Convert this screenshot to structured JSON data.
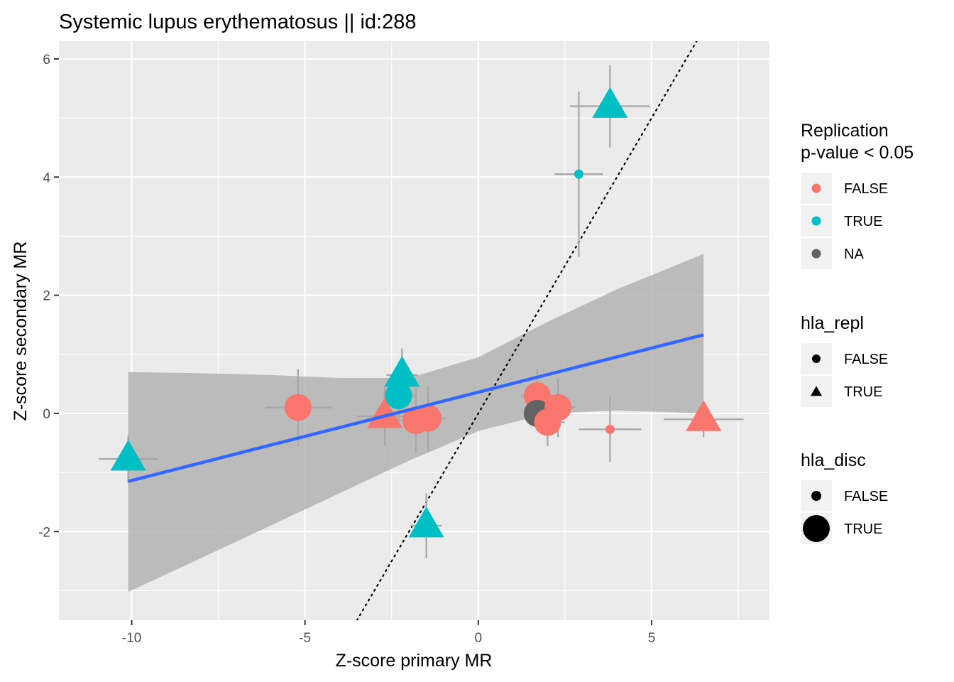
{
  "chart_data": {
    "type": "scatter",
    "title": "Systemic lupus erythematosus || id:288",
    "xlabel": "Z-score primary MR",
    "ylabel": "Z-score secondary MR",
    "xlim": [
      -12.1,
      8.4
    ],
    "ylim": [
      -3.5,
      6.3
    ],
    "x_ticks": [
      -10,
      -5,
      0,
      5
    ],
    "y_ticks": [
      -2,
      0,
      2,
      4,
      6
    ],
    "x_tick_labels": [
      "-10",
      "-5",
      "0",
      "5"
    ],
    "y_tick_labels": [
      "-2",
      "0",
      "2",
      "4",
      "6"
    ],
    "grid": true,
    "colors": {
      "FALSE": "#F8766D",
      "TRUE": "#00BFC4",
      "NA": "#636363",
      "fit_line": "#3366FF",
      "ribbon": "#b3b3b3",
      "errorbar": "#a6a6a6"
    },
    "reference_line": {
      "style": "dotted",
      "x": [
        -3.5,
        6.3
      ],
      "y": [
        -3.5,
        6.3
      ]
    },
    "fit": {
      "x": [
        -10.1,
        6.5
      ],
      "y": [
        -1.15,
        1.33
      ],
      "ribbon": [
        {
          "x": -10.1,
          "lo": -3.02,
          "hi": 0.7
        },
        {
          "x": -8,
          "lo": -2.45,
          "hi": 0.68
        },
        {
          "x": -6,
          "lo": -1.9,
          "hi": 0.65
        },
        {
          "x": -4,
          "lo": -1.35,
          "hi": 0.6
        },
        {
          "x": -2,
          "lo": -0.8,
          "hi": 0.6
        },
        {
          "x": 0,
          "lo": -0.3,
          "hi": 0.95
        },
        {
          "x": 2,
          "lo": 0.0,
          "hi": 1.55
        },
        {
          "x": 4,
          "lo": 0.05,
          "hi": 2.1
        },
        {
          "x": 6.5,
          "lo": 0.0,
          "hi": 2.7
        }
      ]
    },
    "points": [
      {
        "x": -10.1,
        "y": -0.77,
        "xerr": 0.85,
        "yerr": 0.4,
        "replication": "TRUE",
        "hla_repl": "TRUE",
        "hla_disc": "TRUE"
      },
      {
        "x": -5.2,
        "y": 0.1,
        "xerr": 0.95,
        "yerr": 0.65,
        "replication": "FALSE",
        "hla_repl": "FALSE",
        "hla_disc": "TRUE"
      },
      {
        "x": -2.7,
        "y": -0.05,
        "xerr": 0.8,
        "yerr": 0.5,
        "replication": "FALSE",
        "hla_repl": "TRUE",
        "hla_disc": "TRUE"
      },
      {
        "x": -2.2,
        "y": 0.65,
        "xerr": 0.45,
        "yerr": 0.45,
        "replication": "TRUE",
        "hla_repl": "TRUE",
        "hla_disc": "TRUE"
      },
      {
        "x": -2.3,
        "y": 0.3,
        "xerr": 0.45,
        "yerr": 0.45,
        "replication": "TRUE",
        "hla_repl": "FALSE",
        "hla_disc": "TRUE"
      },
      {
        "x": -1.8,
        "y": -0.12,
        "xerr": 0.5,
        "yerr": 0.55,
        "replication": "FALSE",
        "hla_repl": "FALSE",
        "hla_disc": "TRUE"
      },
      {
        "x": -1.45,
        "y": -0.08,
        "xerr": 0.5,
        "yerr": 0.55,
        "replication": "FALSE",
        "hla_repl": "FALSE",
        "hla_disc": "TRUE"
      },
      {
        "x": -1.5,
        "y": -1.9,
        "xerr": 0.45,
        "yerr": 0.55,
        "replication": "TRUE",
        "hla_repl": "TRUE",
        "hla_disc": "TRUE"
      },
      {
        "x": 1.7,
        "y": 0.3,
        "xerr": 0.45,
        "yerr": 0.45,
        "replication": "FALSE",
        "hla_repl": "FALSE",
        "hla_disc": "TRUE"
      },
      {
        "x": 1.7,
        "y": 0.0,
        "xerr": 0.35,
        "yerr": 0.3,
        "replication": "NA",
        "hla_repl": "FALSE",
        "hla_disc": "TRUE"
      },
      {
        "x": 2.0,
        "y": -0.15,
        "xerr": 0.5,
        "yerr": 0.4,
        "replication": "FALSE",
        "hla_repl": "FALSE",
        "hla_disc": "TRUE"
      },
      {
        "x": 2.3,
        "y": 0.1,
        "xerr": 0.5,
        "yerr": 0.5,
        "replication": "FALSE",
        "hla_repl": "FALSE",
        "hla_disc": "TRUE"
      },
      {
        "x": 2.9,
        "y": 4.05,
        "xerr": 0.7,
        "yerr": 1.4,
        "replication": "TRUE",
        "hla_repl": "FALSE",
        "hla_disc": "FALSE"
      },
      {
        "x": 3.8,
        "y": 5.2,
        "xerr": 1.15,
        "yerr": 0.7,
        "replication": "TRUE",
        "hla_repl": "TRUE",
        "hla_disc": "TRUE"
      },
      {
        "x": 3.8,
        "y": -0.27,
        "xerr": 0.9,
        "yerr": 0.55,
        "replication": "FALSE",
        "hla_repl": "FALSE",
        "hla_disc": "FALSE"
      },
      {
        "x": 6.5,
        "y": -0.1,
        "xerr": 1.15,
        "yerr": 0.3,
        "replication": "FALSE",
        "hla_repl": "TRUE",
        "hla_disc": "TRUE"
      }
    ],
    "legends": [
      {
        "title_lines": [
          "Replication",
          "p-value < 0.05"
        ],
        "kind": "color",
        "entries": [
          {
            "label": "FALSE",
            "key": "FALSE"
          },
          {
            "label": "TRUE",
            "key": "TRUE"
          },
          {
            "label": "NA",
            "key": "NA"
          }
        ]
      },
      {
        "title_lines": [
          "hla_repl"
        ],
        "kind": "shape",
        "entries": [
          {
            "label": "FALSE",
            "key": "circle"
          },
          {
            "label": "TRUE",
            "key": "triangle"
          }
        ]
      },
      {
        "title_lines": [
          "hla_disc"
        ],
        "kind": "size",
        "entries": [
          {
            "label": "FALSE",
            "key": "small"
          },
          {
            "label": "TRUE",
            "key": "large"
          }
        ]
      }
    ]
  }
}
